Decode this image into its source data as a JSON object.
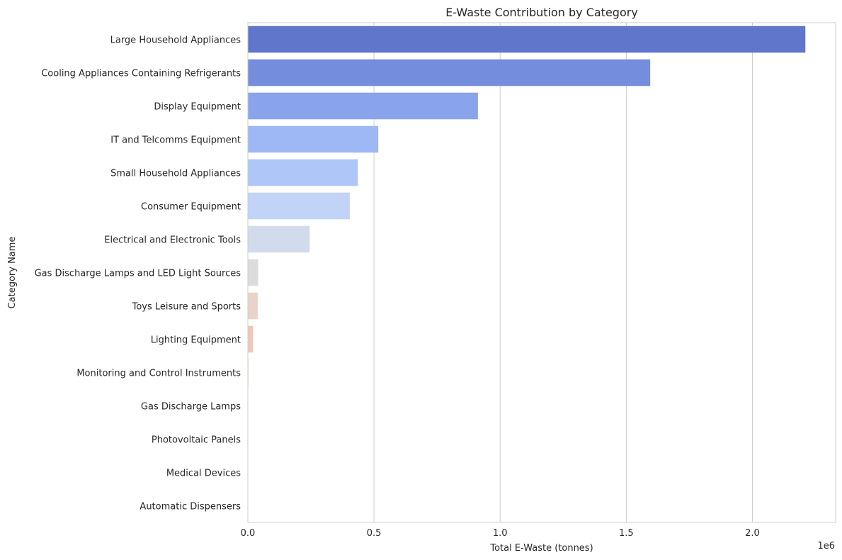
{
  "chart_data": {
    "type": "bar",
    "orientation": "horizontal",
    "title": "E-Waste Contribution by Category",
    "xlabel": "Total E-Waste (tonnes)",
    "ylabel": "Category Name",
    "x_offset_label": "1e6",
    "xlim": [
      0,
      2.33
    ],
    "xticks": [
      0.0,
      0.5,
      1.0,
      1.5,
      2.0
    ],
    "xtick_labels": [
      "0.0",
      "0.5",
      "1.0",
      "1.5",
      "2.0"
    ],
    "grid": "vertical",
    "categories": [
      "Large Household Appliances",
      "Cooling Appliances Containing Refrigerants",
      "Display Equipment",
      "IT and Telcomms Equipment",
      "Small Household Appliances",
      "Consumer Equipment",
      "Electrical and Electronic Tools",
      "Gas Discharge Lamps and LED Light Sources",
      "Toys Leisure and Sports",
      "Lighting Equipment",
      "Monitoring and Control Instruments",
      "Gas Discharge Lamps",
      "Photovoltaic Panels",
      "Medical Devices",
      "Automatic Dispensers"
    ],
    "values": [
      2.21,
      1.595,
      0.912,
      0.517,
      0.436,
      0.404,
      0.245,
      0.041,
      0.039,
      0.02,
      0.002,
      0.001,
      0.001,
      0.0005,
      0.0003
    ],
    "colors": [
      "#6076cb",
      "#758ddd",
      "#89a4ea",
      "#9eb7f5",
      "#afc6f8",
      "#c1d3f6",
      "#d2dbeb",
      "#dddcdc",
      "#e9d3c9",
      "#efc7b7",
      "#f1bba6",
      "#f2ae96",
      "#f1a087",
      "#ee9178",
      "#e8826b"
    ]
  }
}
